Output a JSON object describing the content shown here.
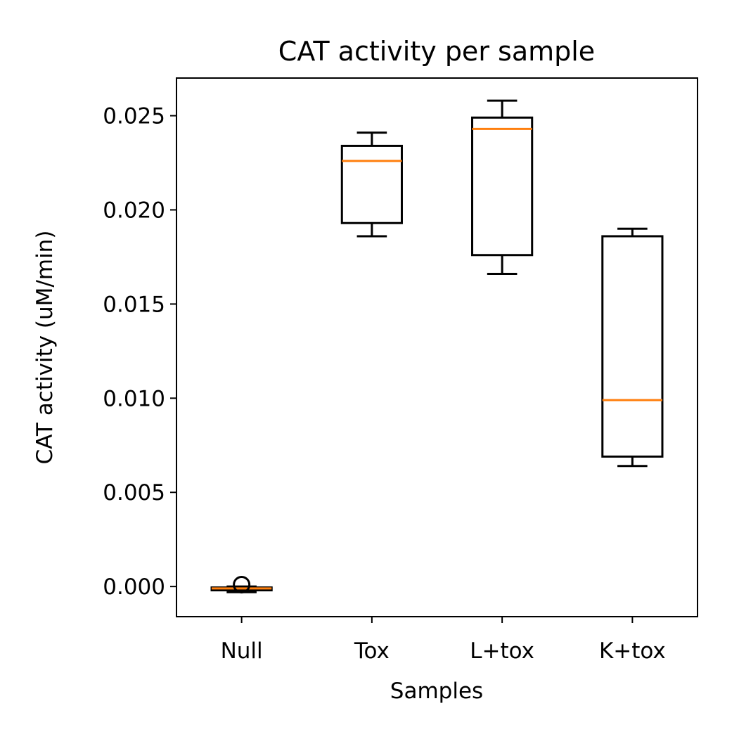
{
  "chart_data": {
    "type": "box",
    "title": "CAT activity per sample",
    "xlabel": "Samples",
    "ylabel": "CAT activity (uM/min)",
    "ylim": [
      -0.0016,
      0.027
    ],
    "yticks": [
      0.0,
      0.005,
      0.01,
      0.015,
      0.02,
      0.025
    ],
    "ytick_labels": [
      "0.000",
      "0.005",
      "0.010",
      "0.015",
      "0.020",
      "0.025"
    ],
    "categories": [
      "Null",
      "Tox",
      "L+tox",
      "K+tox"
    ],
    "boxes": [
      {
        "category": "Null",
        "whisker_low": -0.0003,
        "q1": -0.0002,
        "median": -0.0001,
        "q3": -5e-05,
        "whisker_high": 0.0,
        "outliers": [
          0.0001
        ]
      },
      {
        "category": "Tox",
        "whisker_low": 0.0186,
        "q1": 0.0193,
        "median": 0.0226,
        "q3": 0.0234,
        "whisker_high": 0.0241,
        "outliers": []
      },
      {
        "category": "L+tox",
        "whisker_low": 0.0166,
        "q1": 0.0176,
        "median": 0.0243,
        "q3": 0.0249,
        "whisker_high": 0.0258,
        "outliers": []
      },
      {
        "category": "K+tox",
        "whisker_low": 0.0064,
        "q1": 0.0069,
        "median": 0.0099,
        "q3": 0.0186,
        "whisker_high": 0.019,
        "outliers": []
      }
    ],
    "colors": {
      "box": "#000000",
      "median": "#ff7f0e",
      "background": "#ffffff"
    },
    "grid": false,
    "legend": "none"
  }
}
